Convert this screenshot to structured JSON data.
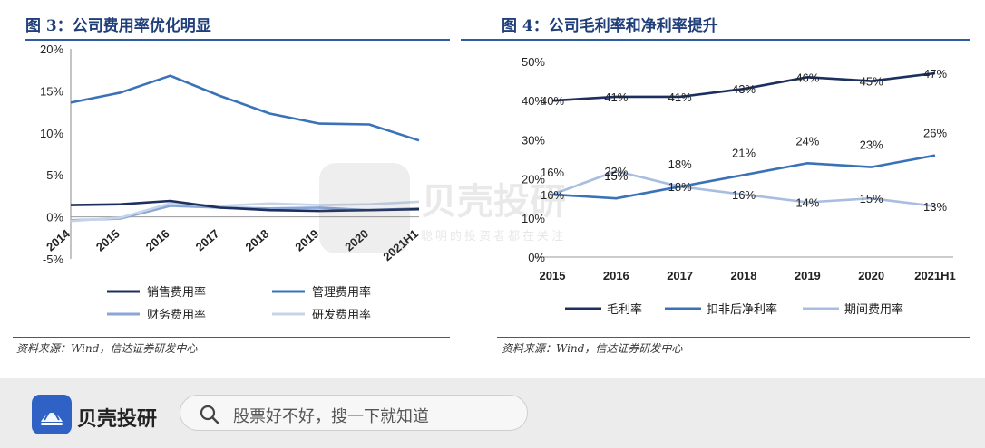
{
  "left_panel": {
    "title": "图 3：公司费用率优化明显",
    "source": "资料来源：Wind，信达证券研发中心"
  },
  "right_panel": {
    "title": "图 4：公司毛利率和净利率提升",
    "source": "资料来源：Wind，信达证券研发中心"
  },
  "watermark": {
    "name": "贝壳投研",
    "slogan": "聪明的投资者都在关注"
  },
  "footer": {
    "brand": "贝壳投研",
    "search_placeholder": "股票好不好，搜一下就知道"
  },
  "chart_data": [
    {
      "type": "line",
      "categories": [
        "2014",
        "2015",
        "2016",
        "2017",
        "2018",
        "2019",
        "2020",
        "2021H1"
      ],
      "ylim": [
        -5,
        20
      ],
      "yticks": [
        "-5%",
        "0%",
        "5%",
        "10%",
        "15%",
        "20%"
      ],
      "legend_position": "bottom",
      "grid": false,
      "series": [
        {
          "name": "销售费用率",
          "color": "#1c2f5e",
          "values": [
            1.4,
            1.5,
            1.9,
            1.1,
            0.8,
            0.7,
            0.8,
            0.9
          ]
        },
        {
          "name": "管理费用率",
          "color": "#3a72b8",
          "values": [
            13.6,
            14.8,
            16.8,
            14.4,
            12.3,
            11.1,
            11.0,
            9.1
          ]
        },
        {
          "name": "财务费用率",
          "color": "#8aa6d4",
          "values": [
            -0.4,
            -0.2,
            1.3,
            1.1,
            1.0,
            1.1,
            0.8,
            1.0
          ]
        },
        {
          "name": "研发费用率",
          "color": "#c5d4ea",
          "values": [
            -0.5,
            -0.1,
            1.6,
            1.3,
            1.6,
            1.4,
            1.5,
            1.8
          ]
        }
      ]
    },
    {
      "type": "line",
      "categories": [
        "2015",
        "2016",
        "2017",
        "2018",
        "2019",
        "2020",
        "2021H1"
      ],
      "ylim": [
        0,
        50
      ],
      "yticks": [
        "0%",
        "10%",
        "20%",
        "30%",
        "40%",
        "50%"
      ],
      "legend_position": "bottom",
      "grid": false,
      "series": [
        {
          "name": "毛利率",
          "color": "#1c2f5e",
          "values": [
            40,
            41,
            41,
            43,
            46,
            45,
            47
          ],
          "labels": [
            "40%",
            "41%",
            "41%",
            "43%",
            "46%",
            "45%",
            "47%"
          ]
        },
        {
          "name": "扣非后净利率",
          "color": "#3a72b8",
          "values": [
            16,
            15,
            18,
            21,
            24,
            23,
            26
          ],
          "labels": [
            "16%",
            "15%",
            "18%",
            "21%",
            "24%",
            "23%",
            "26%"
          ]
        },
        {
          "name": "期间费用率",
          "color": "#a9bde0",
          "values": [
            16,
            22,
            18,
            16,
            14,
            15,
            13
          ],
          "labels": [
            "16%",
            "22%",
            "18%",
            "16%",
            "14%",
            "15%",
            "13%"
          ]
        }
      ]
    }
  ]
}
